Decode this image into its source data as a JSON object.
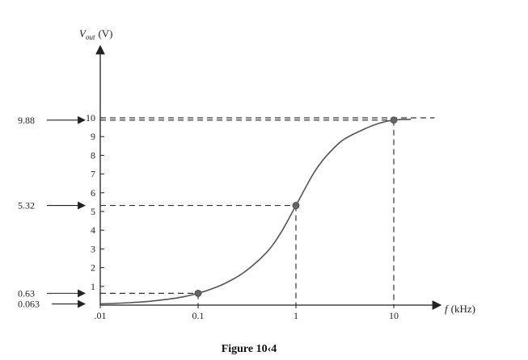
{
  "chart_data": {
    "type": "line",
    "y_axis": {
      "title_symbol": "V",
      "title_subscript": "out",
      "title_unit": "(V)",
      "ticks": [
        1,
        2,
        3,
        4,
        5,
        6,
        7,
        8,
        9,
        10
      ],
      "tick_labels": [
        "1",
        "2",
        "3",
        "4",
        "5",
        "6",
        "7",
        "8",
        "9",
        "10"
      ],
      "ylim": [
        0,
        10
      ]
    },
    "x_axis": {
      "scale": "log",
      "title_symbol": "f",
      "title_unit": "(kHz)",
      "ticks": [
        0.01,
        0.1,
        1,
        10
      ],
      "tick_labels": [
        ".01",
        "0.1",
        "1",
        "10"
      ],
      "xlim": [
        0.01,
        20
      ]
    },
    "series": [
      {
        "x": [
          0.01,
          0.02,
          0.03,
          0.05,
          0.07,
          0.1,
          0.15,
          0.2,
          0.3,
          0.5,
          0.7,
          1,
          1.5,
          2,
          3,
          5,
          7,
          10,
          15
        ],
        "y": [
          0.063,
          0.13,
          0.19,
          0.32,
          0.44,
          0.63,
          0.94,
          1.23,
          1.78,
          2.81,
          3.86,
          5.32,
          7.0,
          7.9,
          8.8,
          9.4,
          9.7,
          9.88,
          9.92
        ]
      }
    ],
    "highlighted_points": [
      {
        "x": 0.1,
        "y": 0.63
      },
      {
        "x": 1,
        "y": 5.32
      },
      {
        "x": 10,
        "y": 9.88
      }
    ],
    "reference_lines": {
      "horizontal": [
        10,
        9.88,
        5.32,
        0.63
      ],
      "vertical": [
        0.1,
        1,
        10
      ]
    },
    "side_annotations": [
      {
        "label": "9.88",
        "y": 9.88
      },
      {
        "label": "5.32",
        "y": 5.32
      },
      {
        "label": "0.63",
        "y": 0.63
      },
      {
        "label": "0.063",
        "y": 0.063
      }
    ],
    "caption": "Figure 10‹4",
    "grid": false,
    "line_color": "#555555",
    "dash_color": "#333333"
  }
}
